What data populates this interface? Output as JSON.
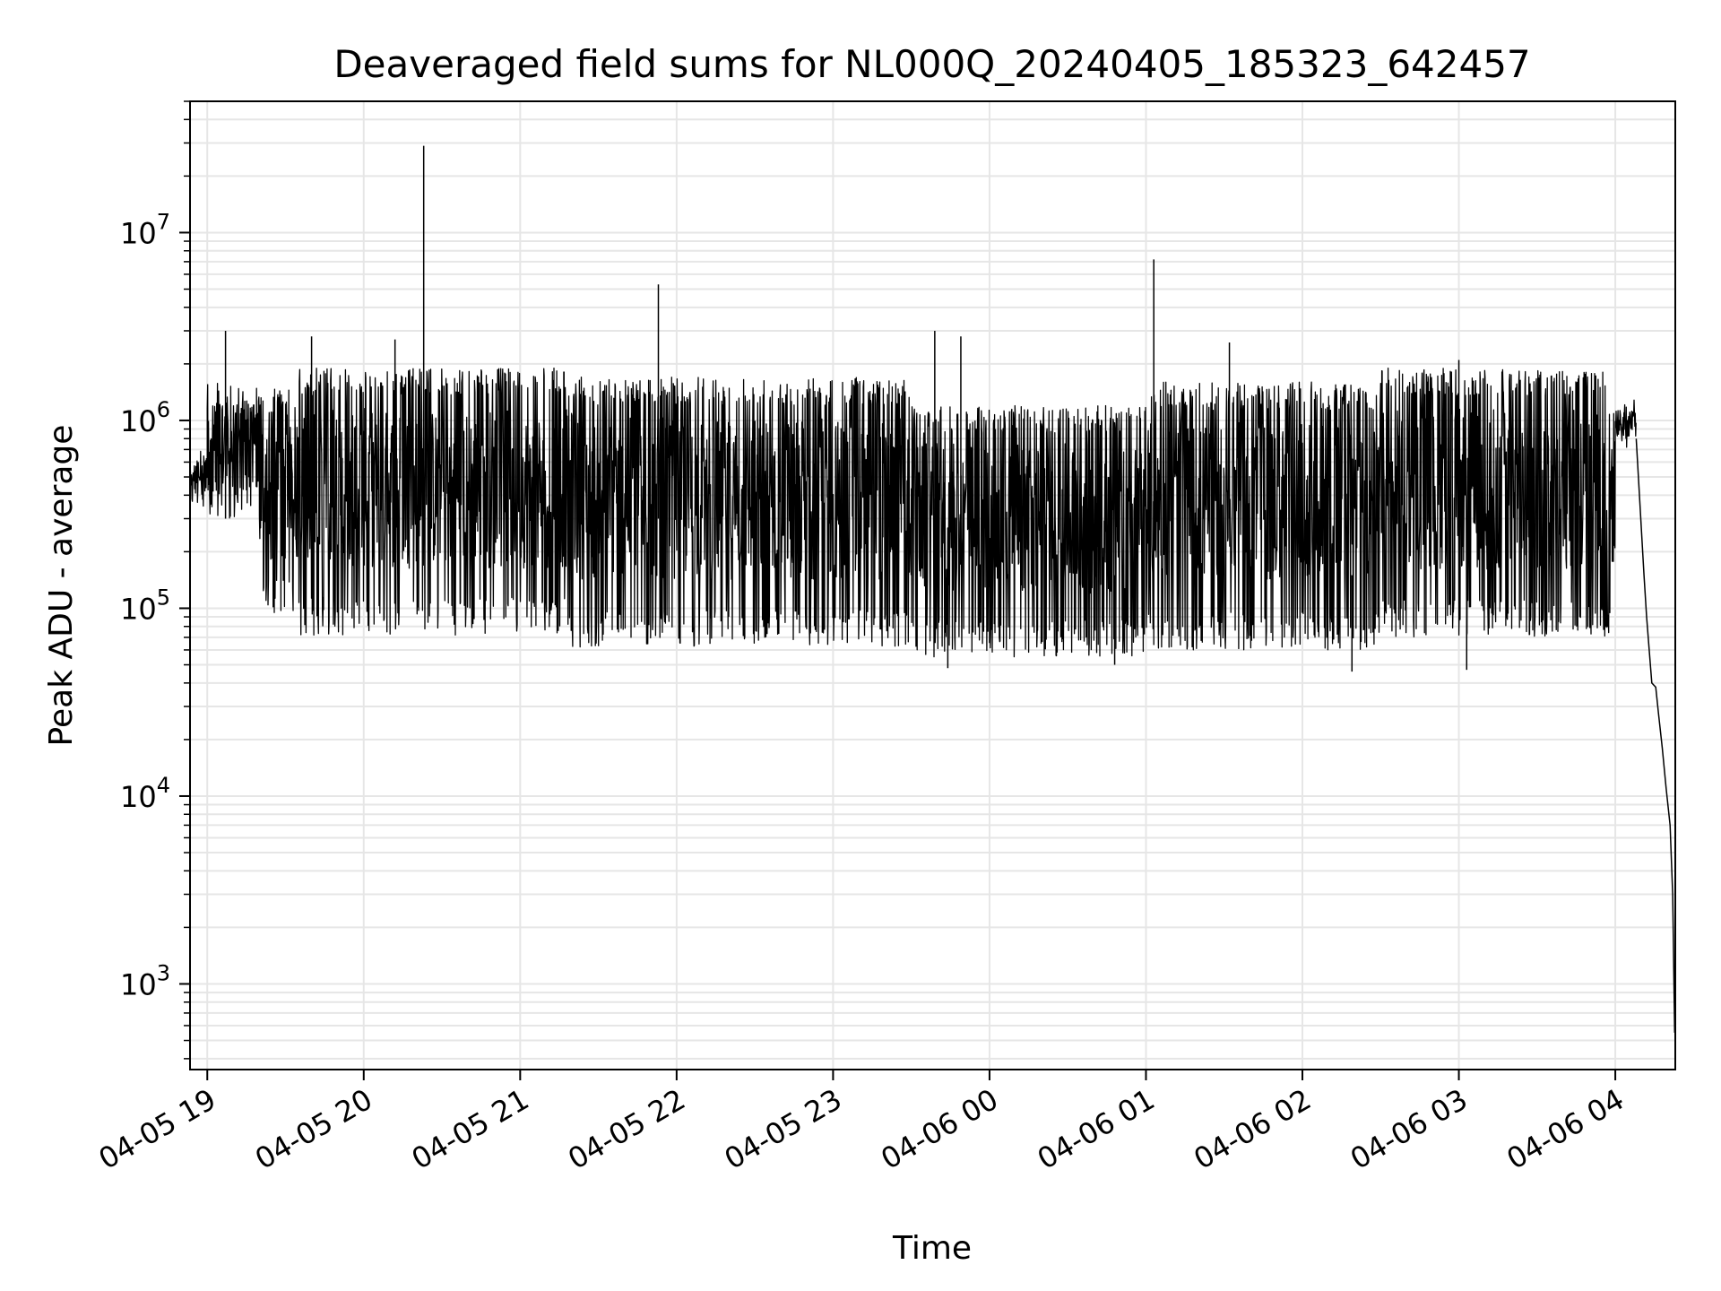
{
  "chart_data": {
    "type": "line",
    "title": "Deaveraged field sums for NL000Q_20240405_185323_642457",
    "xlabel": "Time",
    "ylabel": "Peak ADU - average",
    "yscale": "log",
    "xlim": [
      "2024-04-05T18:53:23",
      "2024-04-06T04:23:00"
    ],
    "ylim": [
      350,
      50000000
    ],
    "grid": true,
    "x_ticks": [
      {
        "label": "04-05 19",
        "value": "2024-04-05T19:00:00"
      },
      {
        "label": "04-05 20",
        "value": "2024-04-05T20:00:00"
      },
      {
        "label": "04-05 21",
        "value": "2024-04-05T21:00:00"
      },
      {
        "label": "04-05 22",
        "value": "2024-04-05T22:00:00"
      },
      {
        "label": "04-05 23",
        "value": "2024-04-05T23:00:00"
      },
      {
        "label": "04-06 00",
        "value": "2024-04-06T00:00:00"
      },
      {
        "label": "04-06 01",
        "value": "2024-04-06T01:00:00"
      },
      {
        "label": "04-06 02",
        "value": "2024-04-06T02:00:00"
      },
      {
        "label": "04-06 03",
        "value": "2024-04-06T03:00:00"
      },
      {
        "label": "04-06 04",
        "value": "2024-04-06T04:00:00"
      }
    ],
    "y_ticks": [
      {
        "base": "10",
        "exp": "3",
        "value": 1000
      },
      {
        "base": "10",
        "exp": "4",
        "value": 10000
      },
      {
        "base": "10",
        "exp": "5",
        "value": 100000
      },
      {
        "base": "10",
        "exp": "6",
        "value": 1000000
      },
      {
        "base": "10",
        "exp": "7",
        "value": 10000000
      }
    ],
    "series": [
      {
        "color": "#000000",
        "segments": [
          {
            "start": "2024-04-05T18:53:23",
            "end": "2024-04-05T19:00:00",
            "low": 340000,
            "high": 700000
          },
          {
            "start": "2024-04-05T19:00:00",
            "end": "2024-04-05T19:20:00",
            "low": 300000,
            "high": 1600000
          },
          {
            "start": "2024-04-05T19:20:00",
            "end": "2024-04-05T19:35:00",
            "low": 90000,
            "high": 1500000
          },
          {
            "start": "2024-04-05T19:35:00",
            "end": "2024-04-05T21:20:00",
            "low": 72000,
            "high": 1900000
          },
          {
            "start": "2024-04-05T21:20:00",
            "end": "2024-04-05T23:30:00",
            "low": 62000,
            "high": 1700000
          },
          {
            "start": "2024-04-05T23:30:00",
            "end": "2024-04-06T01:00:00",
            "low": 55000,
            "high": 1200000
          },
          {
            "start": "2024-04-06T01:00:00",
            "end": "2024-04-06T02:30:00",
            "low": 60000,
            "high": 1600000
          },
          {
            "start": "2024-04-06T02:30:00",
            "end": "2024-04-06T04:00:00",
            "low": 70000,
            "high": 1900000
          },
          {
            "start": "2024-04-06T04:00:00",
            "end": "2024-04-06T04:08:00",
            "low": 700000,
            "high": 1300000
          }
        ],
        "spikes": [
          {
            "x": "2024-04-05T19:07:00",
            "y": 3000000
          },
          {
            "x": "2024-04-05T19:40:00",
            "y": 2800000
          },
          {
            "x": "2024-04-05T20:12:00",
            "y": 2700000
          },
          {
            "x": "2024-04-05T20:23:00",
            "y": 29000000
          },
          {
            "x": "2024-04-05T21:53:00",
            "y": 5300000
          },
          {
            "x": "2024-04-05T23:39:00",
            "y": 3000000
          },
          {
            "x": "2024-04-05T23:49:00",
            "y": 2800000
          },
          {
            "x": "2024-04-06T01:03:00",
            "y": 7200000
          },
          {
            "x": "2024-04-06T01:32:00",
            "y": 2600000
          },
          {
            "x": "2024-04-06T03:00:00",
            "y": 2100000
          }
        ],
        "dips": [
          {
            "x": "2024-04-05T23:44:00",
            "y": 48000
          },
          {
            "x": "2024-04-06T00:48:00",
            "y": 50000
          },
          {
            "x": "2024-04-06T02:19:00",
            "y": 46000
          },
          {
            "x": "2024-04-06T03:03:00",
            "y": 47000
          }
        ],
        "tail": [
          {
            "x": "2024-04-06T04:08:00",
            "y": 800000
          },
          {
            "x": "2024-04-06T04:09:30",
            "y": 350000
          },
          {
            "x": "2024-04-06T04:11:00",
            "y": 150000
          },
          {
            "x": "2024-04-06T04:12:00",
            "y": 90000
          },
          {
            "x": "2024-04-06T04:13:00",
            "y": 60000
          },
          {
            "x": "2024-04-06T04:14:00",
            "y": 40000
          },
          {
            "x": "2024-04-06T04:15:30",
            "y": 38000
          },
          {
            "x": "2024-04-06T04:16:30",
            "y": 28000
          },
          {
            "x": "2024-04-06T04:18:00",
            "y": 18000
          },
          {
            "x": "2024-04-06T04:19:30",
            "y": 11000
          },
          {
            "x": "2024-04-06T04:21:00",
            "y": 7000
          },
          {
            "x": "2024-04-06T04:22:00",
            "y": 3000
          },
          {
            "x": "2024-04-06T04:22:45",
            "y": 550
          }
        ]
      }
    ]
  }
}
